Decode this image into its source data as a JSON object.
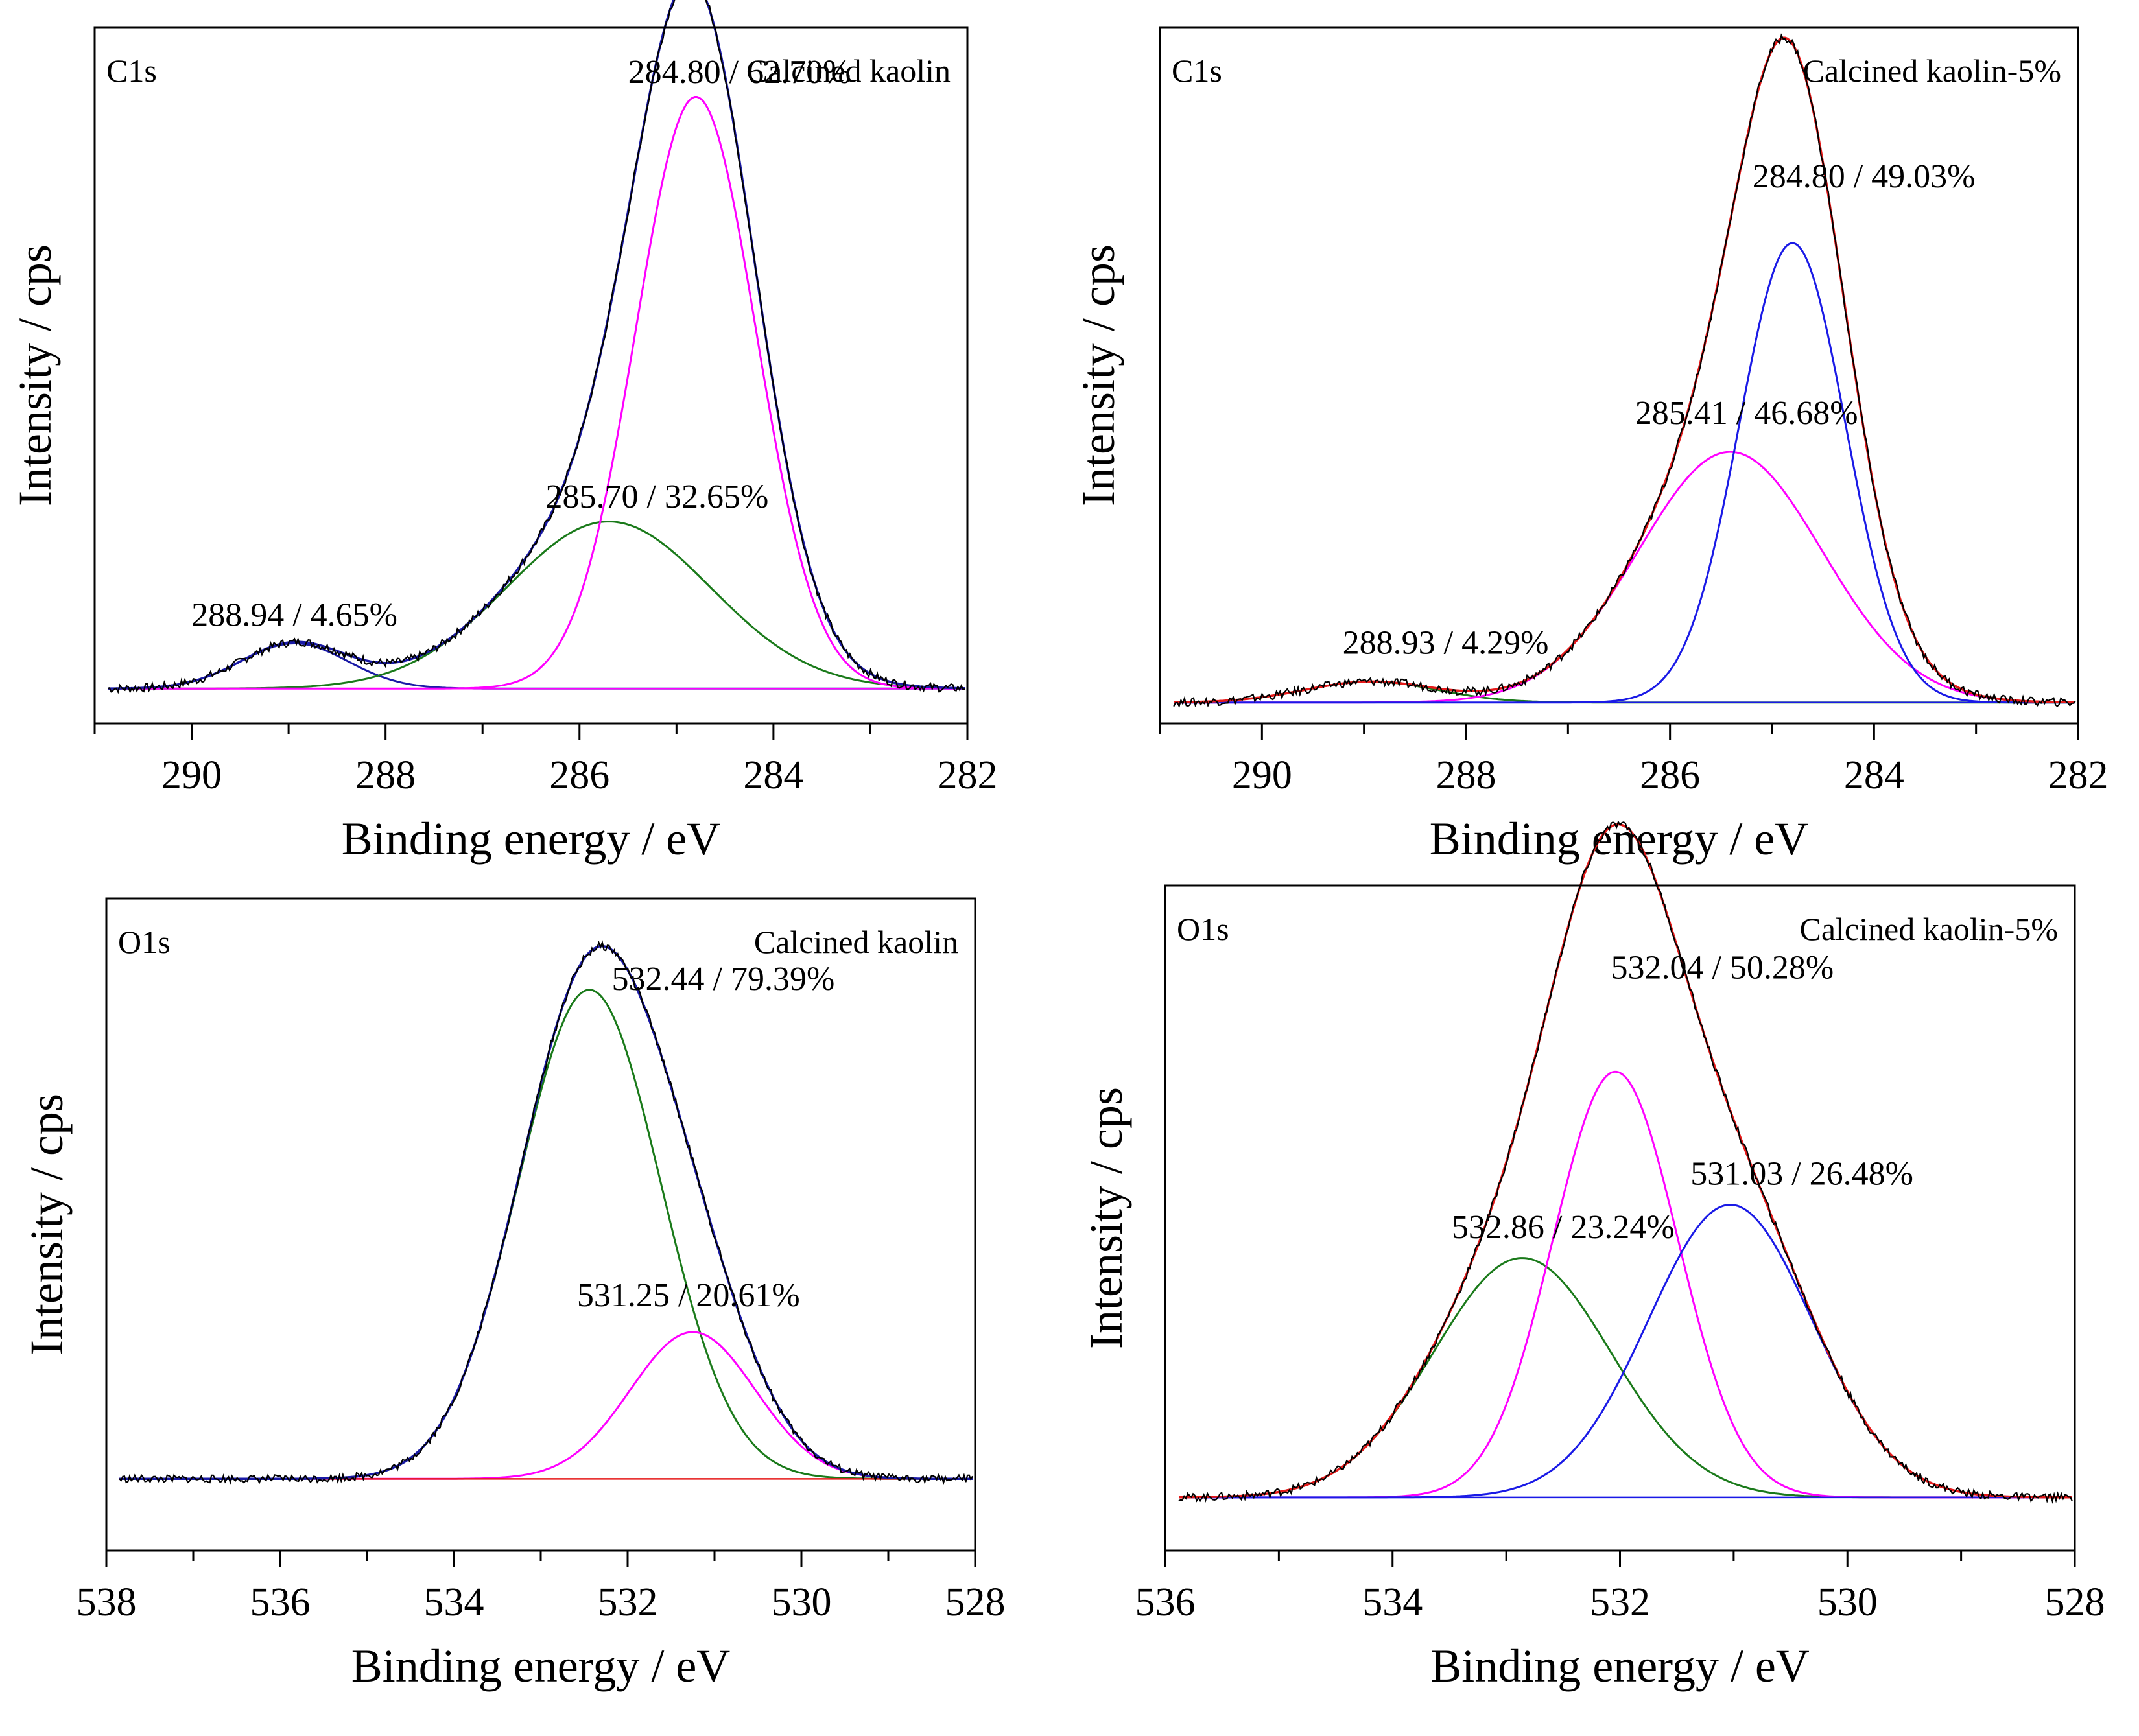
{
  "chart_data": [
    {
      "type": "line",
      "panel": "top-left",
      "core_level": "C1s",
      "sample": "Calcined kaolin",
      "xlabel": "Binding energy / eV",
      "ylabel": "Intensity / cps",
      "xlim": [
        291,
        282
      ],
      "x_reversed": true,
      "xticks": [
        "290",
        "288",
        "286",
        "284",
        "282"
      ],
      "xtick_values": [
        290,
        288,
        286,
        284,
        282
      ],
      "y_range": [
        0,
        1
      ],
      "baseline": 0.05,
      "series": [
        {
          "name": "288.94 / 4.65%",
          "center": 288.94,
          "percent": 4.65,
          "amplitude": 0.065,
          "sigma": 0.55,
          "color": "#1a1aa6"
        },
        {
          "name": "285.70 / 32.65%",
          "center": 285.7,
          "percent": 32.65,
          "amplitude": 0.24,
          "sigma": 1.05,
          "color": "#1a7a1a"
        },
        {
          "name": "284.80 / 62.70%",
          "center": 284.8,
          "percent": 62.7,
          "amplitude": 0.85,
          "sigma": 0.62,
          "color": "#ff00ff"
        }
      ],
      "envelope_color": "#1a1aa6",
      "labels": [
        {
          "text": "288.94 / 4.65%",
          "x": 288.94,
          "y": 0.14
        },
        {
          "text": "285.70 / 32.65%",
          "x": 285.2,
          "y": 0.31
        },
        {
          "text": "284.80 / 62.70%",
          "x": 284.35,
          "y": 0.92
        }
      ]
    },
    {
      "type": "line",
      "panel": "top-right",
      "core_level": "C1s",
      "sample": "Calcined kaolin-5%",
      "xlabel": "Binding energy / eV",
      "ylabel": "Intensity / cps",
      "xlim": [
        291,
        282
      ],
      "x_reversed": true,
      "xticks": [
        "290",
        "288",
        "286",
        "284",
        "282"
      ],
      "xtick_values": [
        290,
        288,
        286,
        284,
        282
      ],
      "y_range": [
        0,
        1
      ],
      "baseline": 0.03,
      "series": [
        {
          "name": "288.93 / 4.29%",
          "center": 288.93,
          "percent": 4.29,
          "amplitude": 0.03,
          "sigma": 0.65,
          "color": "#1a7a1a"
        },
        {
          "name": "285.41 / 46.68%",
          "center": 285.41,
          "percent": 46.68,
          "amplitude": 0.36,
          "sigma": 0.9,
          "color": "#ff00ff"
        },
        {
          "name": "284.80 / 49.03%",
          "center": 284.8,
          "percent": 49.03,
          "amplitude": 0.66,
          "sigma": 0.52,
          "color": "#1a1ae6"
        }
      ],
      "envelope_color": "#e61a1a",
      "labels": [
        {
          "text": "288.93 / 4.29%",
          "x": 288.2,
          "y": 0.1
        },
        {
          "text": "285.41 / 46.68%",
          "x": 285.25,
          "y": 0.43
        },
        {
          "text": "284.80 / 49.03%",
          "x": 284.1,
          "y": 0.77
        }
      ]
    },
    {
      "type": "line",
      "panel": "bottom-left",
      "core_level": "O1s",
      "sample": "Calcined kaolin",
      "xlabel": "Binding energy / eV",
      "ylabel": "Intensity / cps",
      "xlim": [
        538,
        528
      ],
      "x_reversed": true,
      "xticks": [
        "538",
        "536",
        "534",
        "532",
        "530",
        "528"
      ],
      "xtick_values": [
        538,
        536,
        534,
        532,
        530,
        528
      ],
      "y_range": [
        0,
        1
      ],
      "baseline": 0.11,
      "series": [
        {
          "name": "532.44 / 79.39%",
          "center": 532.44,
          "percent": 79.39,
          "amplitude": 0.75,
          "sigma": 0.82,
          "color": "#1a7a1a"
        },
        {
          "name": "531.25 / 20.61%",
          "center": 531.25,
          "percent": 20.61,
          "amplitude": 0.225,
          "sigma": 0.72,
          "color": "#ff00ff"
        }
      ],
      "envelope_color": "#1a1aa6",
      "labels": [
        {
          "text": "532.44 / 79.39%",
          "x": 530.9,
          "y": 0.86
        },
        {
          "text": "531.25 / 20.61%",
          "x": 531.3,
          "y": 0.375
        }
      ]
    },
    {
      "type": "line",
      "panel": "bottom-right",
      "core_level": "O1s",
      "sample": "Calcined kaolin-5%",
      "xlabel": "Binding energy / eV",
      "ylabel": "Intensity / cps",
      "xlim": [
        536,
        528
      ],
      "x_reversed": true,
      "xticks": [
        "536",
        "534",
        "532",
        "530",
        "528"
      ],
      "xtick_values": [
        536,
        534,
        532,
        530,
        528
      ],
      "y_range": [
        0,
        1
      ],
      "baseline": 0.08,
      "series": [
        {
          "name": "532.86 / 23.24%",
          "center": 532.86,
          "percent": 23.24,
          "amplitude": 0.36,
          "sigma": 0.78,
          "color": "#1a7a1a"
        },
        {
          "name": "532.04 / 50.28%",
          "center": 532.04,
          "percent": 50.28,
          "amplitude": 0.64,
          "sigma": 0.55,
          "color": "#ff00ff"
        },
        {
          "name": "531.03 / 26.48%",
          "center": 531.03,
          "percent": 26.48,
          "amplitude": 0.44,
          "sigma": 0.72,
          "color": "#1a1ae6"
        }
      ],
      "envelope_color": "#e61a1a",
      "labels": [
        {
          "text": "532.86 / 23.24%",
          "x": 532.5,
          "y": 0.47
        },
        {
          "text": "532.04 / 50.28%",
          "x": 531.1,
          "y": 0.86
        },
        {
          "text": "531.03 / 26.48%",
          "x": 530.4,
          "y": 0.55
        }
      ]
    }
  ]
}
